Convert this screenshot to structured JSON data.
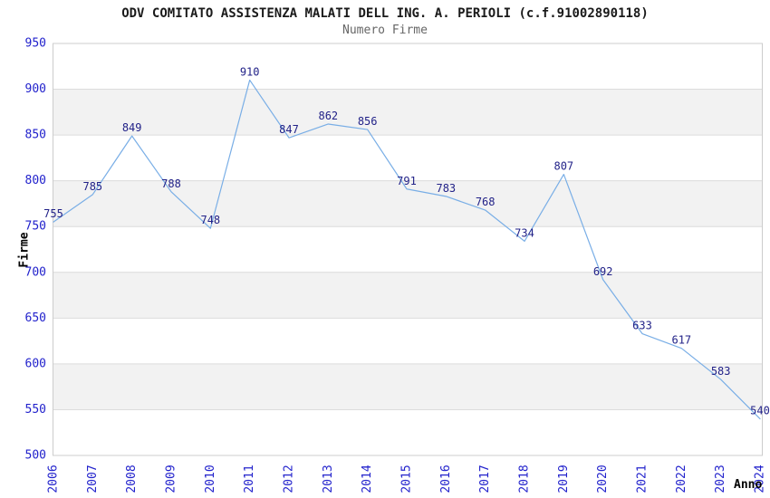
{
  "chart_data": {
    "type": "line",
    "title": "ODV COMITATO ASSISTENZA MALATI DELL ING. A. PERIOLI (c.f.91002890118)",
    "subtitle": "Numero Firme",
    "xlabel": "Anno",
    "ylabel": "Firme",
    "categories": [
      "2006",
      "2007",
      "2008",
      "2009",
      "2010",
      "2011",
      "2012",
      "2013",
      "2014",
      "2015",
      "2016",
      "2017",
      "2018",
      "2019",
      "2020",
      "2021",
      "2022",
      "2023",
      "2024"
    ],
    "values": [
      755,
      785,
      849,
      788,
      748,
      910,
      847,
      862,
      856,
      791,
      783,
      768,
      734,
      807,
      692,
      633,
      617,
      583,
      540
    ],
    "ylim": [
      500,
      950
    ],
    "ytick_step": 50,
    "grid": true,
    "legend": "none",
    "colors": {
      "line": "#79aee6",
      "data_label": "#222288",
      "tick_label": "#2222cc",
      "band": "#f2f2f2",
      "gridline": "#dcdcdc",
      "plot_border": "#cccccc",
      "title": "#1a1a1a",
      "subtitle": "#666666",
      "axis_title": "#000000"
    }
  }
}
